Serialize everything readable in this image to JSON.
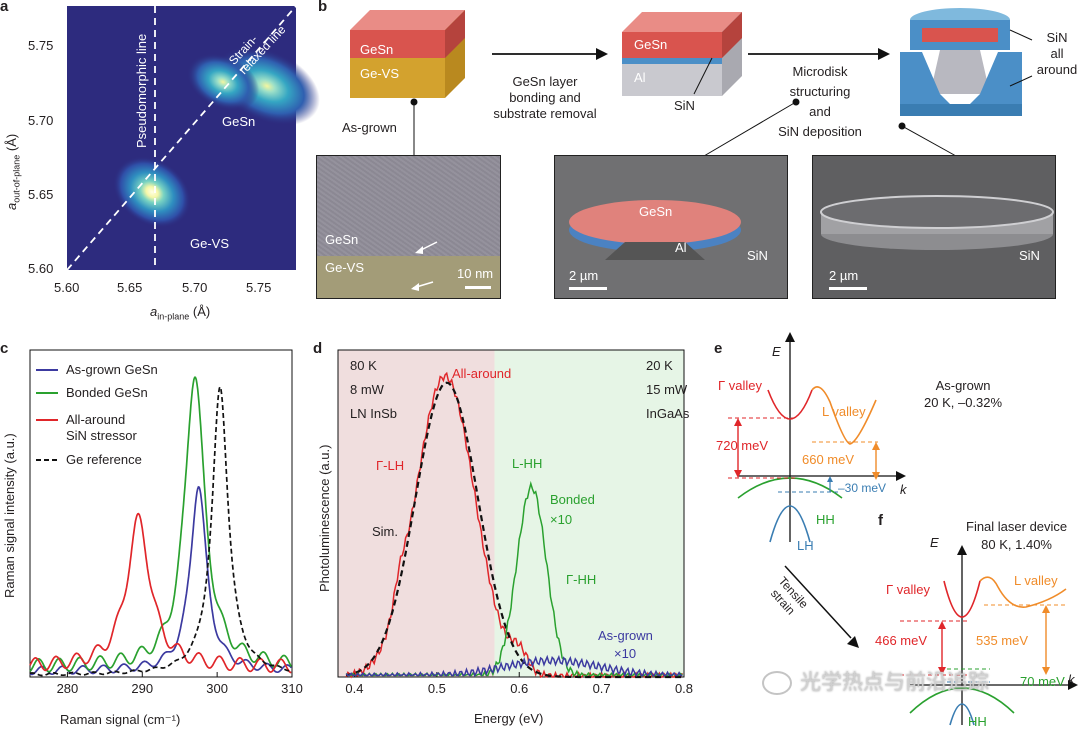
{
  "panel_letters": {
    "a": "a",
    "b": "b",
    "c": "c",
    "d": "d",
    "e": "e",
    "f": "f"
  },
  "panel_a": {
    "ylabel_main": "a",
    "ylabel_sub": "out-of-plane",
    "ylabel_unit": " (Å)",
    "xlabel_main": "a",
    "xlabel_sub": "in-plane",
    "xlabel_unit": " (Å)",
    "xticks": [
      "5.60",
      "5.65",
      "5.70",
      "5.75"
    ],
    "yticks": [
      "5.60",
      "5.65",
      "5.70",
      "5.75"
    ],
    "pseudo_label": "Pseudomorphic line",
    "strain_label_1": "Strain-",
    "strain_label_2": "relaxed line",
    "gesn_label": "GeSn",
    "gevs_label": "Ge-VS",
    "colors": {
      "background": "#2d2b7e",
      "peak": "#f6f7a8"
    }
  },
  "panel_b": {
    "block1_top": "GeSn",
    "block1_bottom": "Ge-VS",
    "as_grown": "As-grown",
    "step1_line1": "GeSn layer",
    "step1_line2": "bonding and",
    "step1_line3": "substrate removal",
    "block2_top": "GeSn",
    "block2_bottom": "Al",
    "block2_sin": "SiN",
    "step2_line1": "Microdisk",
    "step2_line2": "structuring",
    "step2_line3": "and",
    "step2_line4": "SiN deposition",
    "block3_sin_1": "SiN",
    "block3_sin_2": "all around",
    "tem_gesn": "GeSn",
    "tem_gevs": "Ge-VS",
    "tem_scale": "10 nm",
    "sem1_gesn": "GeSn",
    "sem1_al": "Al",
    "sem1_sin": "SiN",
    "sem1_scale": "2 µm",
    "sem2_sin": "SiN",
    "sem2_scale": "2 µm"
  },
  "chart_data": [
    {
      "type": "line",
      "panel": "c",
      "xlabel": "Raman signal (cm⁻¹)",
      "ylabel": "Raman signal intensity (a.u.)",
      "xticks": [
        "280",
        "290",
        "300",
        "310"
      ],
      "xlim": [
        275,
        310
      ],
      "series": [
        {
          "name": "As-grown GeSn",
          "color": "#3c3aa0",
          "dash": "",
          "peak": 297.5,
          "width": 1.3,
          "amp": 0.57,
          "base": 0.03
        },
        {
          "name": "Bonded GeSn",
          "color": "#2aa12f",
          "dash": "",
          "peak": 297.0,
          "width": 1.6,
          "amp": 0.9,
          "base": 0.05
        },
        {
          "name": "All-around SiN stressor",
          "color": "#e0262a",
          "dash": "",
          "peak": 289.5,
          "width": 1.9,
          "amp": 0.45,
          "base": 0.05
        },
        {
          "name": "Ge reference",
          "color": "#111111",
          "dash": "5,3",
          "peak": 300.4,
          "width": 1.3,
          "amp": 0.88,
          "base": 0.01
        }
      ],
      "legend_lines": [
        "As-grown GeSn",
        "Bonded GeSn",
        "All-around",
        "SiN stressor",
        "Ge reference"
      ]
    },
    {
      "type": "line",
      "panel": "d",
      "xlabel": "Energy (eV)",
      "ylabel": "Photoluminescence (a.u.)",
      "xticks": [
        "0.4",
        "0.5",
        "0.6",
        "0.7",
        "0.8"
      ],
      "xlim": [
        0.38,
        0.8
      ],
      "series": [
        {
          "name": "All-around",
          "color": "#e0262a",
          "dash": "",
          "peak": 0.51,
          "width": 0.036,
          "amp": 0.92
        },
        {
          "name": "Sim.",
          "color": "#111111",
          "dash": "6,4",
          "peak": 0.512,
          "width": 0.038,
          "amp": 0.9
        },
        {
          "name": "L-HH",
          "color": "#2aa12f",
          "dash": "",
          "peak": 0.615,
          "width": 0.018,
          "amp": 0.58
        },
        {
          "name": "As-grown",
          "color": "#3c3aa0",
          "dash": "",
          "peak": 0.64,
          "width": 0.06,
          "amp": 0.05
        }
      ],
      "left_conditions": [
        "80 K",
        "8 mW",
        "LN InSb"
      ],
      "right_conditions": [
        "20 K",
        "15 mW",
        "InGaAs"
      ],
      "ann_allaround": "All-around",
      "ann_gammalh": "Γ-LH",
      "ann_sim": "Sim.",
      "ann_lhh": "L-HH",
      "ann_bonded_1": "Bonded",
      "ann_bonded_2": "×10",
      "ann_gammahh": "Γ-HH",
      "ann_asgrown_1": "As-grown",
      "ann_asgrown_2": "×10",
      "colors": {
        "left_bg": "#f0dede",
        "right_bg": "#e6f5e6"
      }
    }
  ],
  "panel_e": {
    "axis_e": "E",
    "axis_k": "k",
    "gamma_valley": "Γ valley",
    "l_valley": "L valley",
    "title_1": "As-grown",
    "title_2": "20 K, –0.32%",
    "gap_gamma": "720 meV",
    "gap_l": "660 meV",
    "split": "–30 meV",
    "hh": "HH",
    "lh": "LH"
  },
  "panel_f": {
    "axis_e": "E",
    "axis_k": "k",
    "gamma_valley": "Γ valley",
    "l_valley": "L valley",
    "title_1": "Final laser device",
    "title_2": "80 K, 1.40%",
    "gap_gamma": "466 meV",
    "gap_l": "535 meV",
    "split": "70 meV",
    "hh": "HH",
    "arrow_1": "Tensile",
    "arrow_2": "strain"
  },
  "watermark": "光学热点与前沿追踪"
}
